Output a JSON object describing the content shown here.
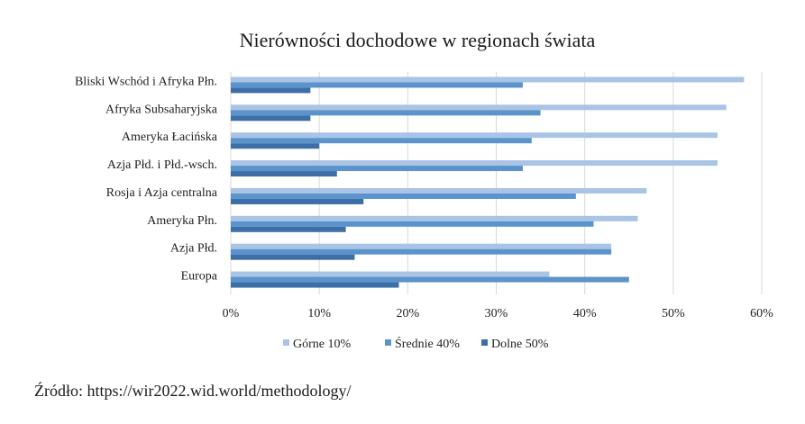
{
  "chart_data": {
    "type": "bar",
    "orientation": "horizontal",
    "title": "Nierówności dochodowe w regionach świata",
    "categories": [
      "Bliski Wschód i Afryka Płn.",
      "Afryka Subsaharyjska",
      "Ameryka Łacińska",
      "Azja Płd. i Płd.-wsch.",
      "Rosja i Azja centralna",
      "Ameryka Płn.",
      "Azja Płd.",
      "Europa"
    ],
    "series": [
      {
        "name": "Górne 10%",
        "color": "#a9c4e4",
        "values": [
          58,
          56,
          55,
          55,
          47,
          46,
          43,
          36
        ]
      },
      {
        "name": "Średnie 40%",
        "color": "#5b93cc",
        "values": [
          33,
          35,
          34,
          33,
          39,
          41,
          43,
          45
        ]
      },
      {
        "name": "Dolne 50%",
        "color": "#3d6fa6",
        "values": [
          9,
          9,
          10,
          12,
          15,
          13,
          14,
          19
        ]
      }
    ],
    "xlim": [
      0,
      60
    ],
    "ticks": [
      "0%",
      "10%",
      "20%",
      "30%",
      "40%",
      "50%",
      "60%"
    ],
    "tick_values": [
      0,
      10,
      20,
      30,
      40,
      50,
      60
    ],
    "grid": true,
    "legend": "bottom"
  },
  "source": "Źródło: https://wir2022.wid.world/methodology/"
}
